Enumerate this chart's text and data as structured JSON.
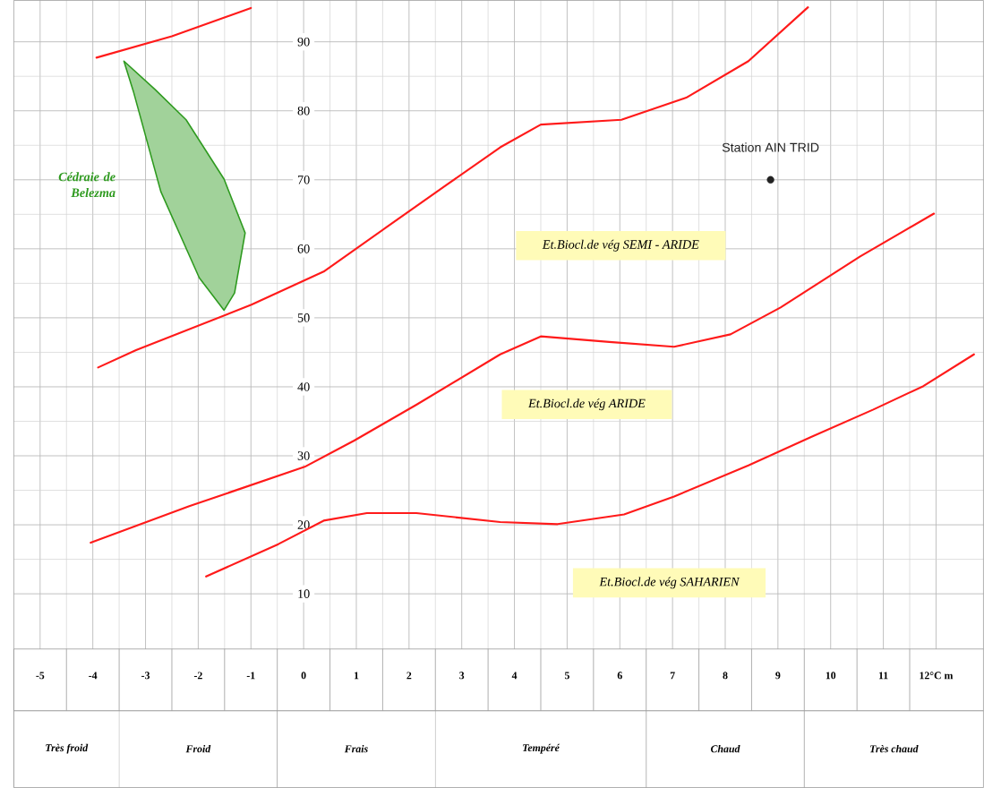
{
  "chart_data": {
    "type": "line",
    "xlim": [
      -5.5,
      12.9
    ],
    "ylim": [
      2,
      96
    ],
    "xticks": [
      -5,
      -4,
      -3,
      -2,
      -1,
      0,
      1,
      2,
      3,
      4,
      5,
      6,
      7,
      8,
      9,
      10,
      11,
      {
        "value": 12,
        "label": "12°C m"
      }
    ],
    "yticks": [
      10,
      20,
      30,
      40,
      50,
      60,
      70,
      80,
      90
    ],
    "grid": true,
    "series": [
      {
        "color": "#ff1a1a",
        "x": [
          -3.93,
          -2.5,
          -1.0
        ],
        "values": [
          87.7,
          90.8,
          94.9
        ]
      },
      {
        "color": "#ff1a1a",
        "x": [
          -3.9,
          -3.18,
          -0.99,
          0.38,
          1.55,
          2.72,
          3.73,
          4.5,
          6.03,
          7.26,
          8.44,
          9.57
        ],
        "values": [
          42.8,
          45.3,
          51.9,
          56.7,
          63.0,
          69.3,
          74.7,
          78.0,
          78.7,
          81.9,
          87.2,
          95.0
        ]
      },
      {
        "color": "#ff1a1a",
        "x": [
          -4.04,
          -2.17,
          0.02,
          0.96,
          2.14,
          3.73,
          4.5,
          5.8,
          7.03,
          8.1,
          9.05,
          10.56,
          11.96
        ],
        "values": [
          17.4,
          22.7,
          28.4,
          32.2,
          37.4,
          44.7,
          47.3,
          46.5,
          45.8,
          47.6,
          51.5,
          58.9,
          65.1
        ]
      },
      {
        "color": "#ff1a1a",
        "x": [
          -1.85,
          -0.48,
          0.38,
          1.2,
          2.14,
          3.73,
          4.82,
          6.08,
          7.03,
          8.44,
          9.62,
          10.81,
          11.76,
          12.72
        ],
        "values": [
          12.5,
          17.2,
          20.6,
          21.7,
          21.7,
          20.4,
          20.1,
          21.5,
          24.1,
          28.6,
          32.7,
          36.7,
          40.1,
          44.7
        ]
      },
      {
        "type": "area",
        "name": "Cédraie de Belezma",
        "color": "#2e9a1f",
        "x": [
          -3.41,
          -2.82,
          -2.23,
          -1.51,
          -1.11,
          -1.31,
          -1.51,
          -1.98,
          -2.71,
          -3.23
        ],
        "values": [
          87.2,
          83.1,
          78.7,
          70.1,
          62.3,
          53.6,
          51.1,
          55.8,
          68.3,
          82.8
        ]
      },
      {
        "type": "scatter",
        "name": "Station AIN TRID",
        "color": "#222222",
        "marker": "circle",
        "x": [
          8.86
        ],
        "values": [
          70.0
        ]
      }
    ],
    "annotations": [
      "*Et.Biocl.de vég* SEMI  - ARIDE",
      "*Et.Biocl.de vég* ARIDE",
      "Et.Biocl.de vég SAHARIEN",
      "Très froid",
      "Froid",
      "Frais",
      "Tempéré",
      "Chaud",
      "Très chaud"
    ]
  }
}
